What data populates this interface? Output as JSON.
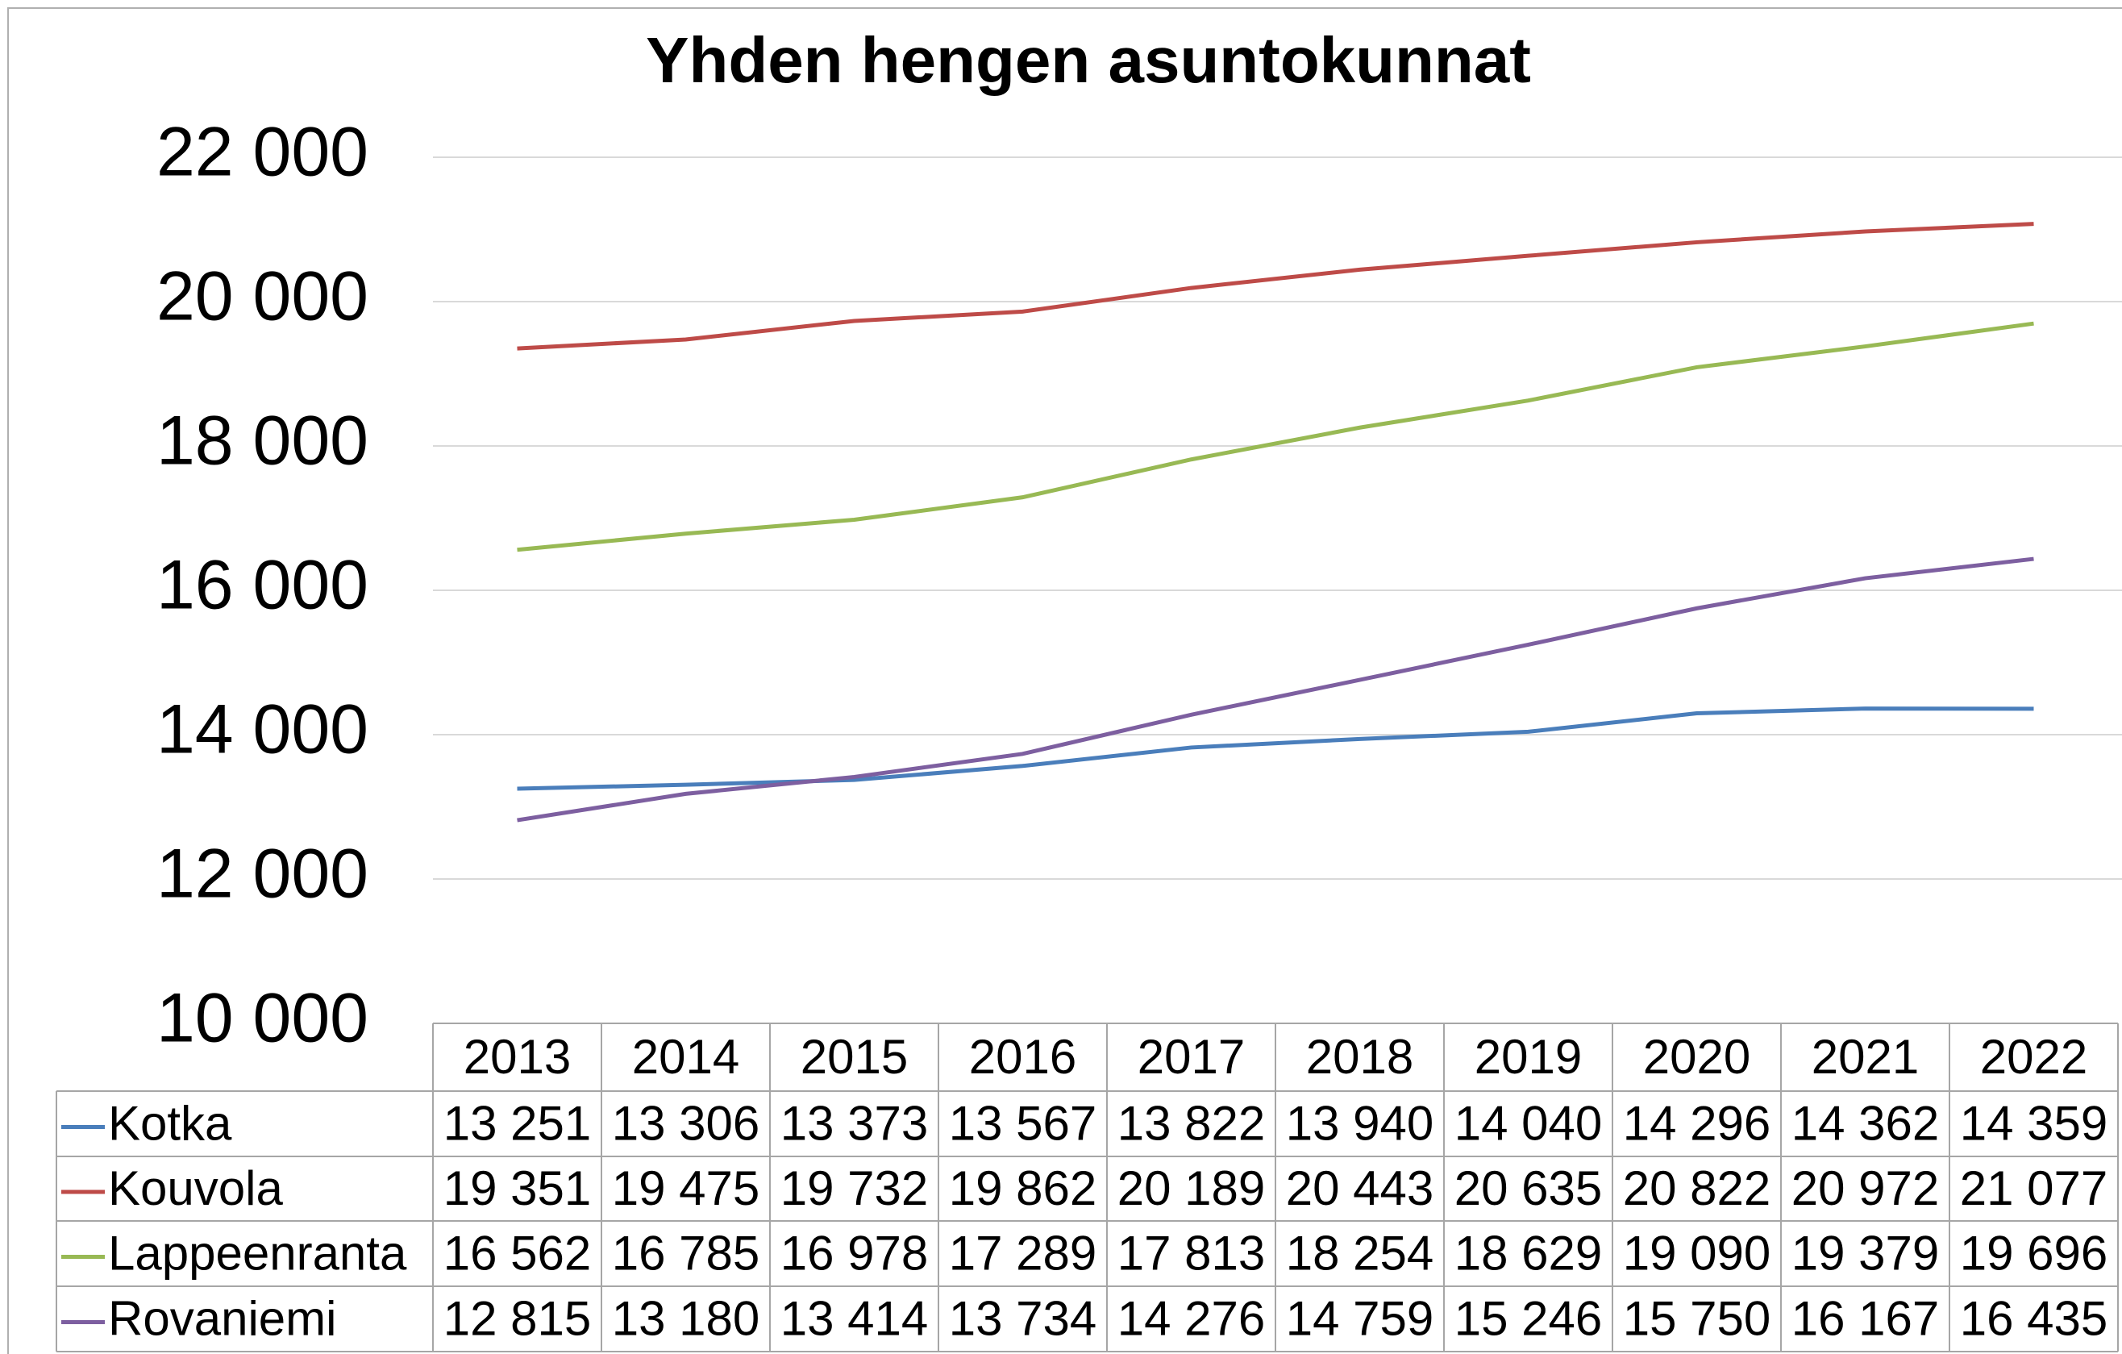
{
  "chart_data": {
    "type": "line",
    "title": "Yhden hengen asuntokunnat",
    "categories": [
      "2013",
      "2014",
      "2015",
      "2016",
      "2017",
      "2018",
      "2019",
      "2020",
      "2021",
      "2022"
    ],
    "series": [
      {
        "name": "Kotka",
        "color": "#4a7ebb",
        "values": [
          13251,
          13306,
          13373,
          13567,
          13822,
          13940,
          14040,
          14296,
          14362,
          14359
        ],
        "value_labels": [
          "13 251",
          "13 306",
          "13 373",
          "13 567",
          "13 822",
          "13 940",
          "14 040",
          "14 296",
          "14 362",
          "14 359"
        ]
      },
      {
        "name": "Kouvola",
        "color": "#be4b48",
        "values": [
          19351,
          19475,
          19732,
          19862,
          20189,
          20443,
          20635,
          20822,
          20972,
          21077
        ],
        "value_labels": [
          "19 351",
          "19 475",
          "19 732",
          "19 862",
          "20 189",
          "20 443",
          "20 635",
          "20 822",
          "20 972",
          "21 077"
        ]
      },
      {
        "name": "Lappeenranta",
        "color": "#98b954",
        "values": [
          16562,
          16785,
          16978,
          17289,
          17813,
          18254,
          18629,
          19090,
          19379,
          19696
        ],
        "value_labels": [
          "16 562",
          "16 785",
          "16 978",
          "17 289",
          "17 813",
          "18 254",
          "18 629",
          "19 090",
          "19 379",
          "19 696"
        ]
      },
      {
        "name": "Rovaniemi",
        "color": "#7d5fa0",
        "values": [
          12815,
          13180,
          13414,
          13734,
          14276,
          14759,
          15246,
          15750,
          16167,
          16435
        ],
        "value_labels": [
          "12 815",
          "13 180",
          "13 414",
          "13 734",
          "14 276",
          "14 759",
          "15 246",
          "15 750",
          "16 167",
          "16 435"
        ]
      }
    ],
    "ylim": [
      10000,
      22000
    ],
    "yticks": [
      {
        "value": 10000,
        "label": "10 000"
      },
      {
        "value": 12000,
        "label": "12 000"
      },
      {
        "value": 14000,
        "label": "14 000"
      },
      {
        "value": 16000,
        "label": "16 000"
      },
      {
        "value": 18000,
        "label": "18 000"
      },
      {
        "value": 20000,
        "label": "20 000"
      },
      {
        "value": 22000,
        "label": "22 000"
      }
    ],
    "grid": true
  }
}
